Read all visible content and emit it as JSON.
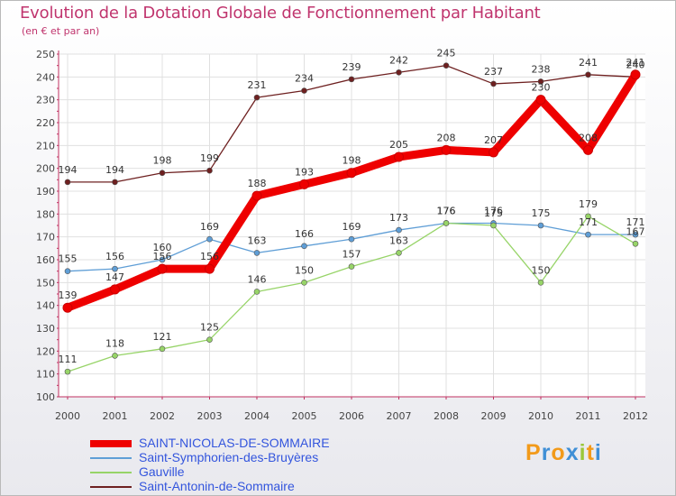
{
  "title": "Evolution de la Dotation Globale de Fonctionnement par Habitant",
  "subtitle": "(en € et par an)",
  "brand": "Proxiti",
  "chart_data": {
    "type": "line",
    "title": "Evolution de la Dotation Globale de Fonctionnement par Habitant",
    "subtitle": "(en € et par an)",
    "x": [
      "2000",
      "2001",
      "2002",
      "2003",
      "2004",
      "2005",
      "2006",
      "2007",
      "2008",
      "2009",
      "2010",
      "2011",
      "2012"
    ],
    "ylim": [
      100,
      250
    ],
    "yticks": [
      100,
      110,
      120,
      130,
      140,
      150,
      160,
      170,
      180,
      190,
      200,
      210,
      220,
      230,
      240,
      250
    ],
    "xlabel": "",
    "ylabel": "",
    "grid": true,
    "legend_position": "bottom",
    "series": [
      {
        "name": "Saint-Antonin-de-Sommaire",
        "color": "#6e2020",
        "values": [
          194,
          194,
          198,
          199,
          231,
          234,
          239,
          242,
          245,
          237,
          238,
          241,
          240
        ]
      },
      {
        "name": "Saint-Symphorien-des-Bruyères",
        "color": "#5f9ed6",
        "values": [
          155,
          156,
          160,
          169,
          163,
          166,
          169,
          173,
          176,
          176,
          175,
          171,
          171
        ]
      },
      {
        "name": "Gauville",
        "color": "#97d468",
        "values": [
          111,
          118,
          121,
          125,
          146,
          150,
          157,
          163,
          176,
          175,
          150,
          179,
          167
        ]
      },
      {
        "name": "SAINT-NICOLAS-DE-SOMMAIRE",
        "color": "#ee0000",
        "values": [
          139,
          147,
          156,
          156,
          188,
          193,
          198,
          205,
          208,
          207,
          230,
          208,
          241
        ]
      }
    ]
  },
  "legend": [
    {
      "name": "SAINT-NICOLAS-DE-SOMMAIRE",
      "color": "#ee0000"
    },
    {
      "name": "Saint-Symphorien-des-Bruyères",
      "color": "#5f9ed6"
    },
    {
      "name": "Gauville",
      "color": "#97d468"
    },
    {
      "name": "Saint-Antonin-de-Sommaire",
      "color": "#6e2020"
    }
  ]
}
